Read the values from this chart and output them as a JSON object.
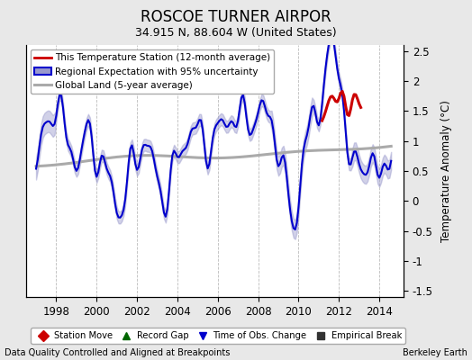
{
  "title": "ROSCOE TURNER AIRPOR",
  "subtitle": "34.915 N, 88.604 W (United States)",
  "ylabel": "Temperature Anomaly (°C)",
  "footer_left": "Data Quality Controlled and Aligned at Breakpoints",
  "footer_right": "Berkeley Earth",
  "xlim": [
    1996.5,
    2015.2
  ],
  "ylim": [
    -1.6,
    2.6
  ],
  "yticks": [
    -1.5,
    -1.0,
    -0.5,
    0.0,
    0.5,
    1.0,
    1.5,
    2.0,
    2.5
  ],
  "xticks": [
    1998,
    2000,
    2002,
    2004,
    2006,
    2008,
    2010,
    2012,
    2014
  ],
  "background_color": "#e8e8e8",
  "plot_bg_color": "#ffffff",
  "grid_color": "#bbbbbb",
  "regional_line_color": "#0000cc",
  "regional_fill_color": "#9999cc",
  "station_line_color": "#cc0000",
  "global_line_color": "#aaaaaa",
  "legend2_items": [
    {
      "label": "Station Move",
      "marker": "D",
      "color": "#cc0000"
    },
    {
      "label": "Record Gap",
      "marker": "^",
      "color": "#006600"
    },
    {
      "label": "Time of Obs. Change",
      "marker": "v",
      "color": "#0000cc"
    },
    {
      "label": "Empirical Break",
      "marker": "s",
      "color": "#333333"
    }
  ]
}
